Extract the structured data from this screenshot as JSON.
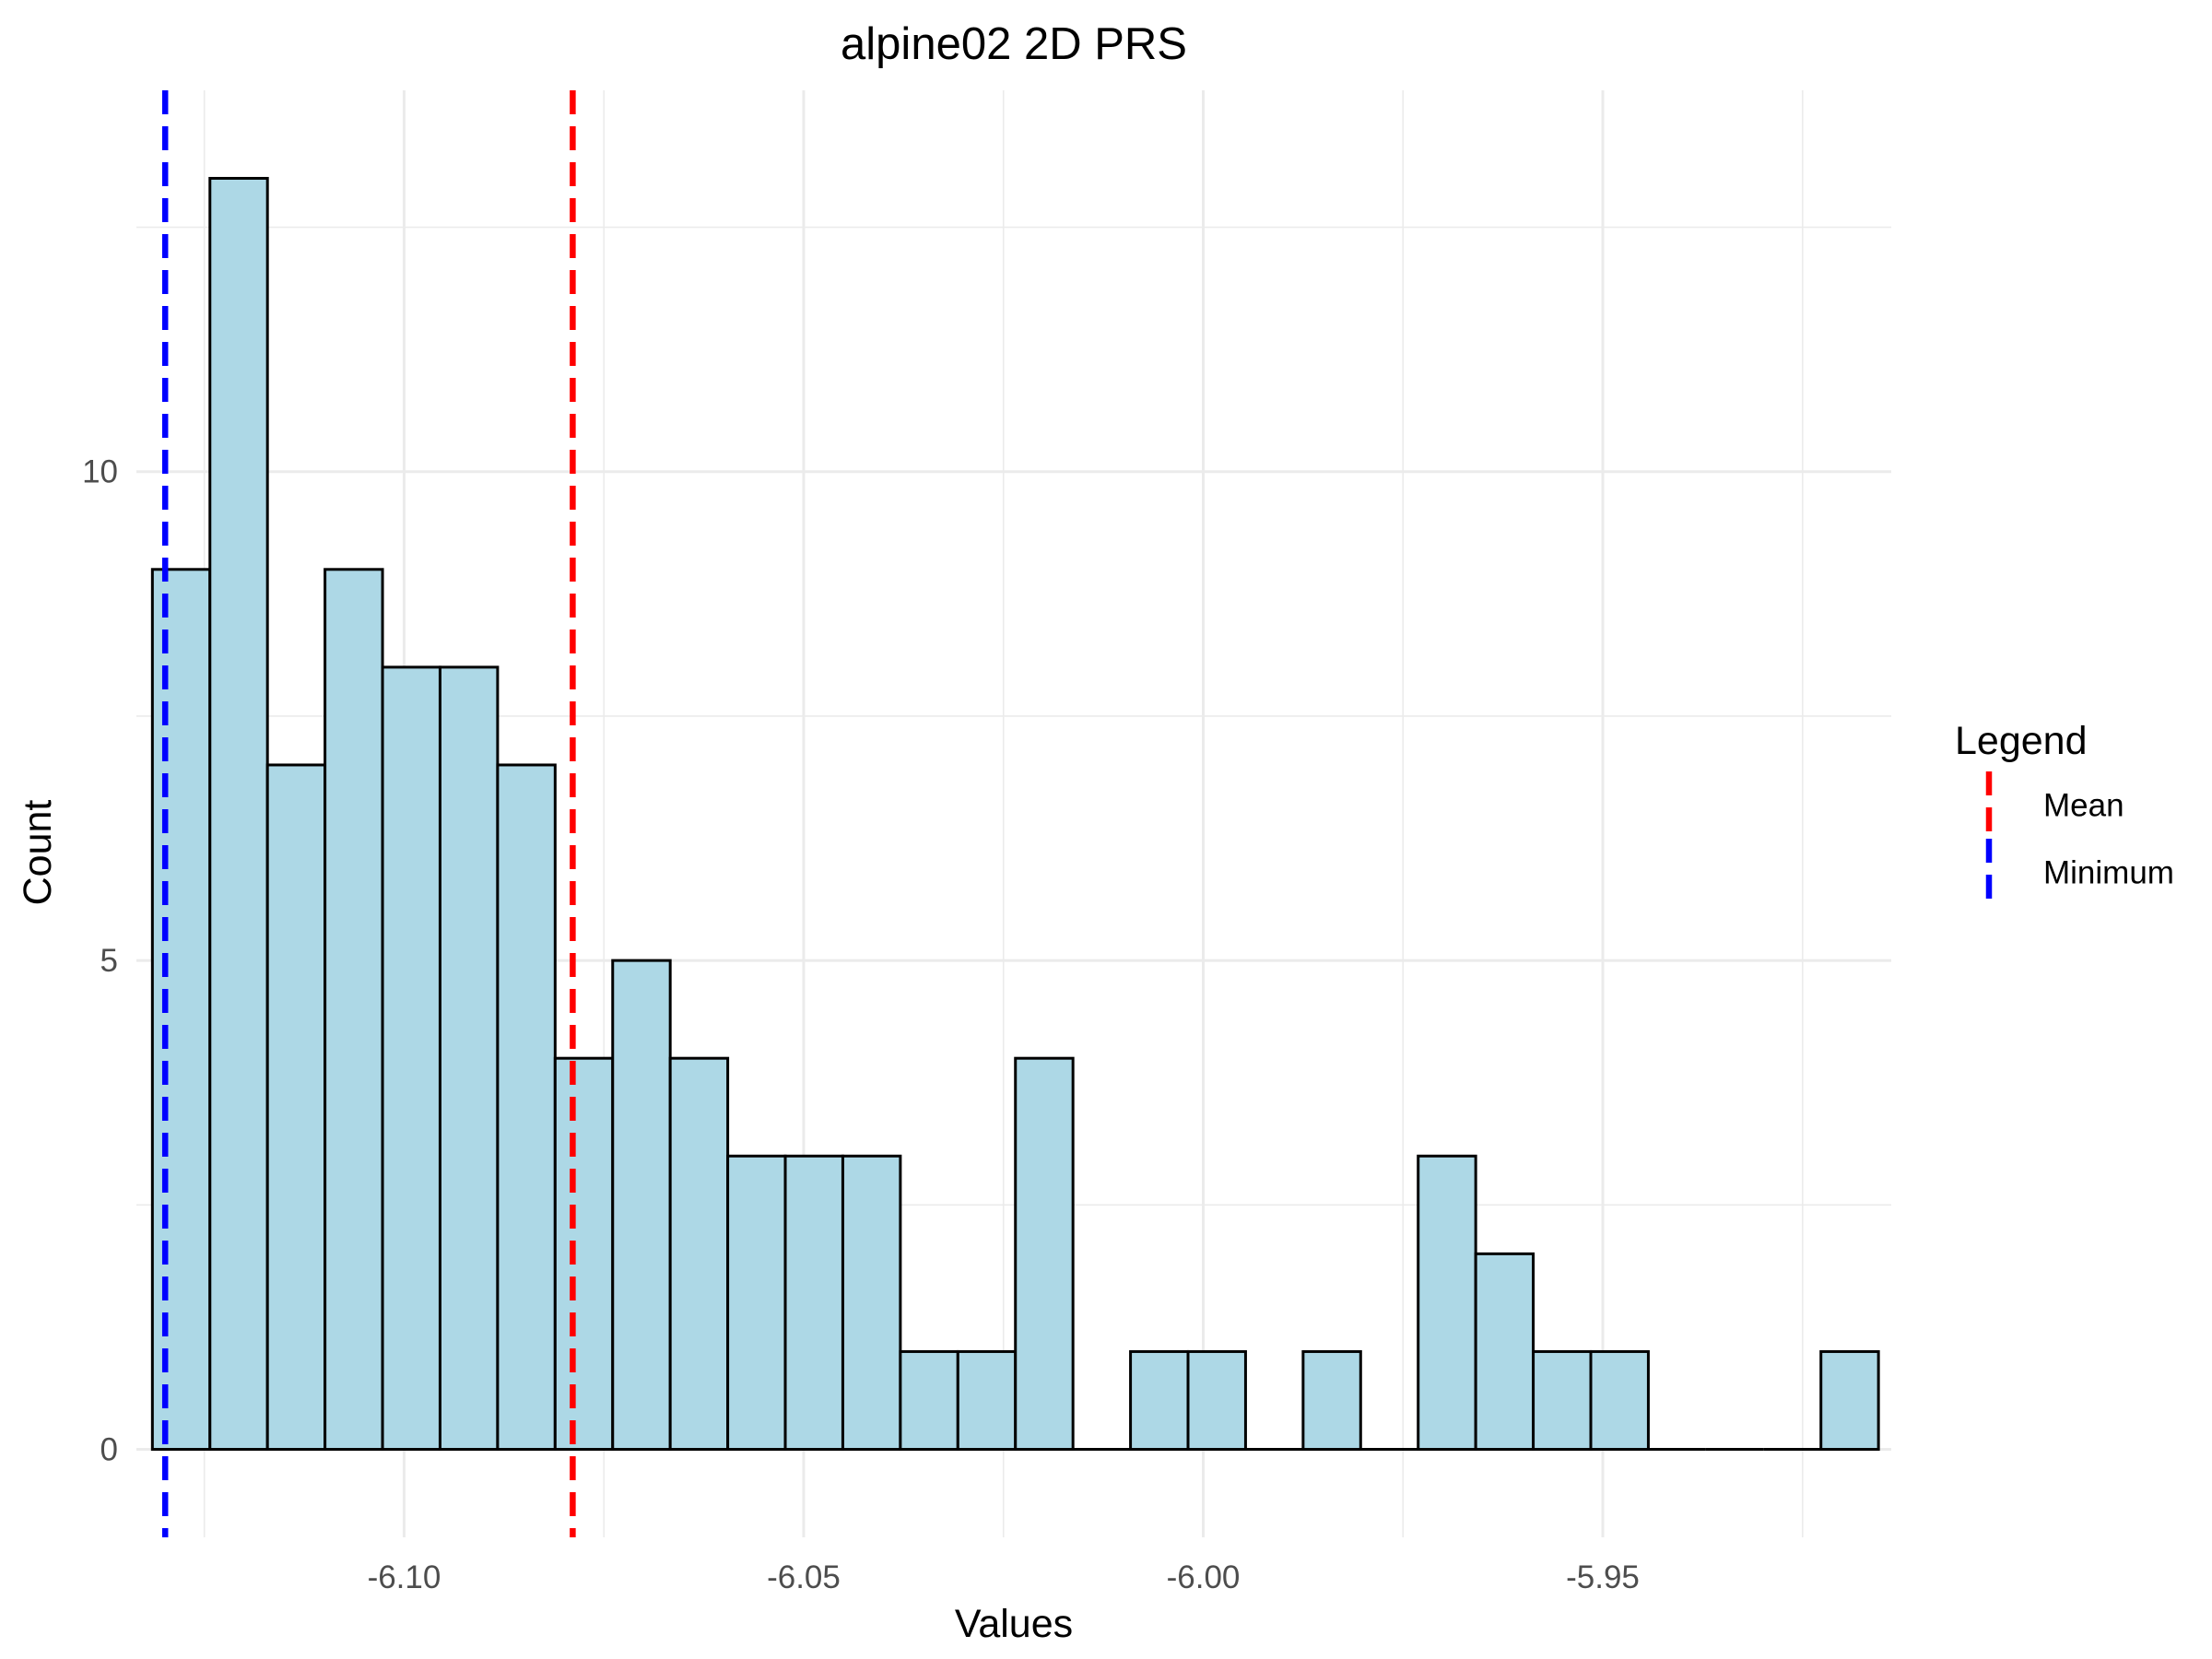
{
  "chart_data": {
    "type": "bar",
    "subtype": "histogram",
    "title": "alpine02 2D PRS",
    "xlabel": "Values",
    "ylabel": "Count",
    "xlim": [
      -6.1335,
      -5.9139
    ],
    "ylim": [
      -0.9,
      13.9
    ],
    "x_ticks": [
      {
        "value": -6.1,
        "label": "-6.10"
      },
      {
        "value": -6.05,
        "label": "-6.05"
      },
      {
        "value": -6.0,
        "label": "-6.00"
      },
      {
        "value": -5.95,
        "label": "-5.95"
      }
    ],
    "y_ticks": [
      {
        "value": 0,
        "label": "0"
      },
      {
        "value": 5,
        "label": "5"
      },
      {
        "value": 10,
        "label": "10"
      }
    ],
    "bin_width": 0.0072,
    "bin_starts": [
      -6.1315,
      -6.1243,
      -6.1171,
      -6.1099,
      -6.1027,
      -6.0955,
      -6.0883,
      -6.0811,
      -6.0739,
      -6.0667,
      -6.0595,
      -6.0523,
      -6.0451,
      -6.0379,
      -6.0307,
      -6.0235,
      -6.0163,
      -6.0091,
      -6.0019,
      -5.9947,
      -5.9875,
      -5.9803,
      -5.9731,
      -5.9659,
      -5.9587,
      -5.9515,
      -5.9443,
      -5.9371,
      -5.9299,
      -5.9227
    ],
    "counts": [
      9,
      13,
      7,
      9,
      8,
      8,
      7,
      4,
      5,
      4,
      3,
      3,
      3,
      1,
      1,
      4,
      0,
      1,
      1,
      0,
      1,
      0,
      3,
      2,
      1,
      1,
      0,
      0,
      0,
      1
    ],
    "bar_fill": "#add8e6",
    "bar_outline": "#000000",
    "grid": true,
    "grid_color": "#ebebeb",
    "reference_lines": [
      {
        "name": "Mean",
        "x": -6.0789,
        "color": "#ff0000",
        "linestyle": "dashed"
      },
      {
        "name": "Minimum",
        "x": -6.1299,
        "color": "#0000ff",
        "linestyle": "dashed"
      }
    ],
    "legend": {
      "title": "Legend",
      "position": "right",
      "items": [
        {
          "label": "Mean",
          "color": "#ff0000"
        },
        {
          "label": "Minimum",
          "color": "#0000ff"
        }
      ]
    }
  }
}
